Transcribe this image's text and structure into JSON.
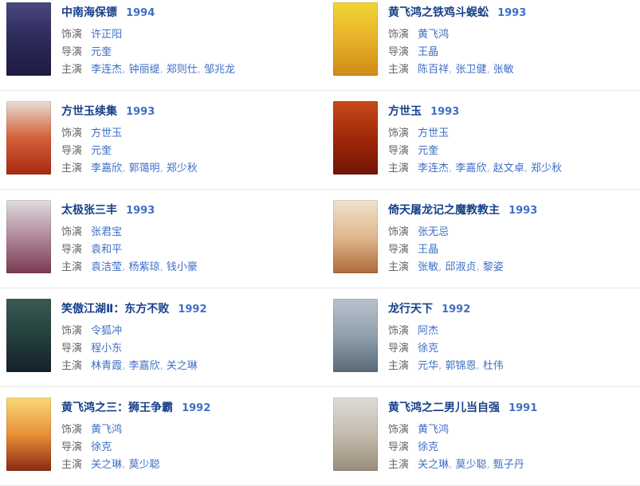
{
  "labels": {
    "role": "饰演",
    "director": "导演",
    "starring": "主演",
    "separator": ", "
  },
  "colors": {
    "title": "#17418a",
    "year": "#3f6fc6",
    "label": "#666666",
    "link": "#3f6fc6",
    "separator": "#a3b4d4",
    "divider": "#e7e7e7",
    "background": "#ffffff"
  },
  "movies": [
    {
      "title": "中南海保镖",
      "year": "1994",
      "role": "许正阳",
      "director": "元奎",
      "starring": [
        "李连杰",
        "钟丽缇",
        "郑则仕",
        "邹兆龙"
      ],
      "poster_name": "bodyguard-from-beijing-poster",
      "poster_colors": [
        "#4a4880",
        "#2c2a58",
        "#1e1c42"
      ]
    },
    {
      "title": "黄飞鸿之铁鸡斗蜈蚣",
      "year": "1993",
      "role": "黄飞鸿",
      "director": "王晶",
      "starring": [
        "陈百祥",
        "张卫健",
        "张敏"
      ],
      "poster_name": "last-hero-in-china-poster",
      "poster_colors": [
        "#f2d535",
        "#e8b22a",
        "#d08a18"
      ]
    },
    {
      "title": "方世玉续集",
      "year": "1993",
      "role": "方世玉",
      "director": "元奎",
      "starring": [
        "李嘉欣",
        "郭蔼明",
        "郑少秋"
      ],
      "poster_name": "fong-sai-yuk-2-poster",
      "poster_colors": [
        "#e8ddd2",
        "#d4603a",
        "#a82a10"
      ]
    },
    {
      "title": "方世玉",
      "year": "1993",
      "role": "方世玉",
      "director": "元奎",
      "starring": [
        "李连杰",
        "李嘉欣",
        "赵文卓",
        "郑少秋"
      ],
      "poster_name": "fong-sai-yuk-poster",
      "poster_colors": [
        "#c84a1a",
        "#a02808",
        "#701505"
      ]
    },
    {
      "title": "太极张三丰",
      "year": "1993",
      "role": "张君宝",
      "director": "袁和平",
      "starring": [
        "袁洁莹",
        "杨紫琼",
        "钱小豪"
      ],
      "poster_name": "tai-chi-master-poster",
      "poster_colors": [
        "#e2dde0",
        "#b0889a",
        "#7a3a52"
      ]
    },
    {
      "title": "倚天屠龙记之魔教教主",
      "year": "1993",
      "role": "张无忌",
      "director": "王晶",
      "starring": [
        "张敏",
        "邱淑贞",
        "黎姿"
      ],
      "poster_name": "evil-cult-poster",
      "poster_colors": [
        "#f0e2cc",
        "#e0b890",
        "#b06a3a"
      ]
    },
    {
      "title": "笑傲江湖Ⅱ：东方不败",
      "year": "1992",
      "role": "令狐冲",
      "director": "程小东",
      "starring": [
        "林青霞",
        "李嘉欣",
        "关之琳"
      ],
      "poster_name": "swordsman-2-poster",
      "poster_colors": [
        "#3a5a55",
        "#24403d",
        "#15202a"
      ]
    },
    {
      "title": "龙行天下",
      "year": "1992",
      "role": "阿杰",
      "director": "徐克",
      "starring": [
        "元华",
        "郭锦恩",
        "杜伟"
      ],
      "poster_name": "the-master-poster",
      "poster_colors": [
        "#b8c2cc",
        "#90a0ac",
        "#5a6a78"
      ]
    },
    {
      "title": "黄飞鸿之三：狮王争霸",
      "year": "1992",
      "role": "黄飞鸿",
      "director": "徐克",
      "starring": [
        "关之琳",
        "莫少聪"
      ],
      "poster_name": "once-upon-a-time-in-china-3-poster",
      "poster_colors": [
        "#f8d878",
        "#e89038",
        "#8a2a12"
      ]
    },
    {
      "title": "黄飞鸿之二男儿当自强",
      "year": "1991",
      "role": "黄飞鸿",
      "director": "徐克",
      "starring": [
        "关之琳",
        "莫少聪",
        "甄子丹"
      ],
      "poster_name": "once-upon-a-time-in-china-2-poster",
      "poster_colors": [
        "#dcdcd6",
        "#c4bcae",
        "#9a8e7c"
      ]
    }
  ]
}
